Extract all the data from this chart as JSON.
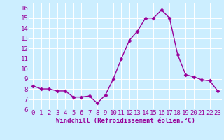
{
  "x": [
    0,
    1,
    2,
    3,
    4,
    5,
    6,
    7,
    8,
    9,
    10,
    11,
    12,
    13,
    14,
    15,
    16,
    17,
    18,
    19,
    20,
    21,
    22,
    23
  ],
  "y": [
    8.3,
    8.0,
    8.0,
    7.8,
    7.8,
    7.2,
    7.2,
    7.3,
    6.6,
    7.4,
    9.0,
    11.0,
    12.8,
    13.7,
    15.0,
    15.0,
    15.8,
    15.0,
    11.4,
    9.4,
    9.2,
    8.9,
    8.8,
    7.8
  ],
  "line_color": "#990099",
  "marker": "D",
  "marker_size": 2.5,
  "bg_color": "#cceeff",
  "grid_color": "#ffffff",
  "xlabel": "Windchill (Refroidissement éolien,°C)",
  "xlabel_color": "#990099",
  "tick_color": "#990099",
  "ylabel_ticks": [
    6,
    7,
    8,
    9,
    10,
    11,
    12,
    13,
    14,
    15,
    16
  ],
  "xlim": [
    -0.5,
    23.5
  ],
  "ylim": [
    6,
    16.5
  ],
  "line_width": 1.0,
  "font_size": 6.5
}
